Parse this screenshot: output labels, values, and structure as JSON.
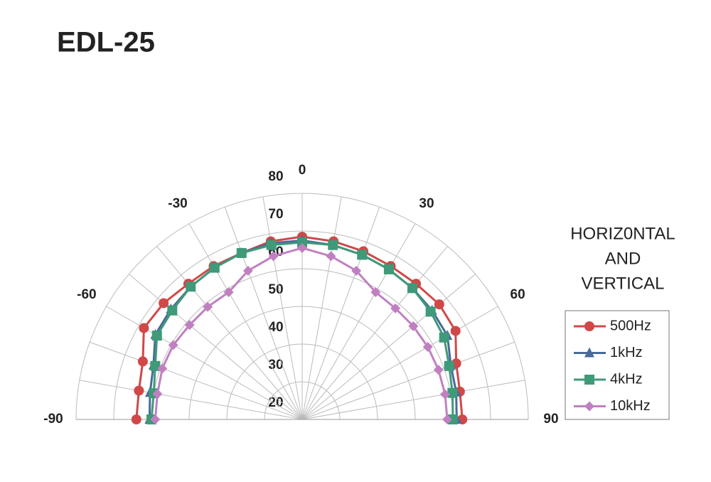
{
  "chart_data": {
    "type": "polar",
    "title": "EDL-25",
    "legend_title": [
      "HORIZ0NTAL",
      "AND",
      "VERTICAL"
    ],
    "theta": [
      -90,
      -80,
      -70,
      -60,
      -50,
      -40,
      -30,
      -20,
      -10,
      0,
      10,
      20,
      30,
      40,
      50,
      60,
      70,
      80,
      90
    ],
    "thetalim": [
      -90,
      90
    ],
    "thetaticks": [
      -90,
      -60,
      -30,
      0,
      30,
      60,
      90
    ],
    "rlim": [
      20,
      80
    ],
    "rticks": [
      20,
      30,
      40,
      50,
      60,
      70,
      80
    ],
    "grid": true,
    "series": [
      {
        "name": "500Hz",
        "color": "#d04848",
        "marker": "circle",
        "values": [
          64,
          64,
          65,
          68.5,
          68,
          67,
          67,
          67,
          68,
          68.5,
          68,
          67.5,
          67,
          67,
          67.5,
          67,
          63.5,
          62.5,
          62.5
        ]
      },
      {
        "name": "1kHz",
        "color": "#4a6a9a",
        "marker": "triangle",
        "values": [
          60.5,
          61,
          62,
          65,
          65.5,
          66,
          66.5,
          67,
          67.5,
          67.5,
          67,
          66.5,
          66,
          65.5,
          65,
          64.5,
          62,
          61.5,
          61
        ]
      },
      {
        "name": "4kHz",
        "color": "#3e9a78",
        "marker": "square",
        "values": [
          60,
          60,
          61.5,
          64.5,
          65,
          66,
          66.5,
          67,
          67,
          67,
          67,
          66.5,
          66,
          65.5,
          64.5,
          63.5,
          61.5,
          60.5,
          60
        ]
      },
      {
        "name": "10kHz",
        "color": "#c080c0",
        "marker": "diamond",
        "values": [
          59,
          59,
          59.5,
          59.5,
          59,
          59,
          59,
          62,
          64,
          65.5,
          64,
          62,
          59,
          58.5,
          58.5,
          58.5,
          58.5,
          58.5,
          58.5
        ]
      }
    ]
  }
}
